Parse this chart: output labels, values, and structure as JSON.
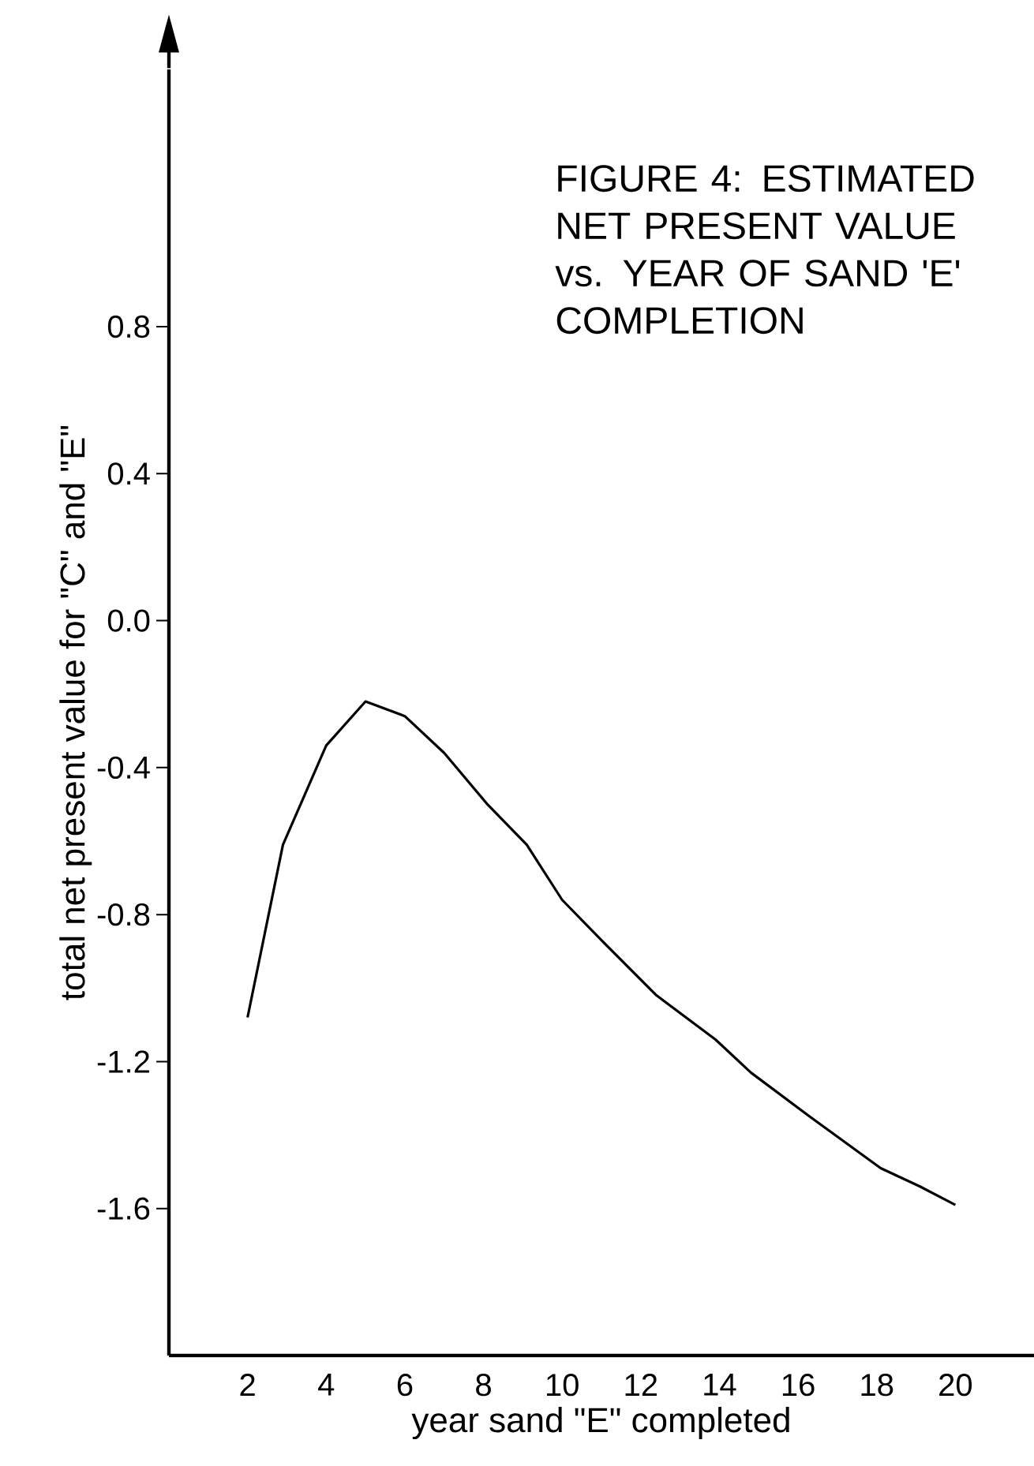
{
  "chart_data": {
    "type": "line",
    "title": "FIGURE 4: ESTIMATED NET PRESENT VALUE vs. YEAR OF SAND 'E' COMPLETION",
    "xlabel": "year sand \"E\" completed",
    "ylabel": "total net present value for \"C\" and \"E\"",
    "series": [
      {
        "color": "#000000",
        "x": [
          2,
          2.9,
          4,
          5,
          6,
          7,
          8.1,
          9.1,
          10,
          11,
          12.4,
          13.9,
          14.8,
          16.3,
          18.1,
          19.1,
          20
        ],
        "values": [
          -1.08,
          -0.61,
          -0.34,
          -0.22,
          -0.26,
          -0.36,
          -0.5,
          -0.61,
          -0.76,
          -0.87,
          -1.02,
          -1.14,
          -1.23,
          -1.35,
          -1.49,
          -1.54,
          -1.59
        ]
      }
    ],
    "xlim": [
      0,
      22
    ],
    "ylim": [
      -2.0,
      1.5
    ],
    "xticks": [
      2,
      4,
      6,
      8,
      10,
      12,
      14,
      16,
      18,
      20
    ],
    "yticks": [
      0.8,
      0.4,
      {
        "value": 0,
        "label": "0.0"
      },
      -0.4,
      -0.8,
      -1.2,
      -1.6
    ],
    "marker": "none",
    "line_style": "solid"
  }
}
